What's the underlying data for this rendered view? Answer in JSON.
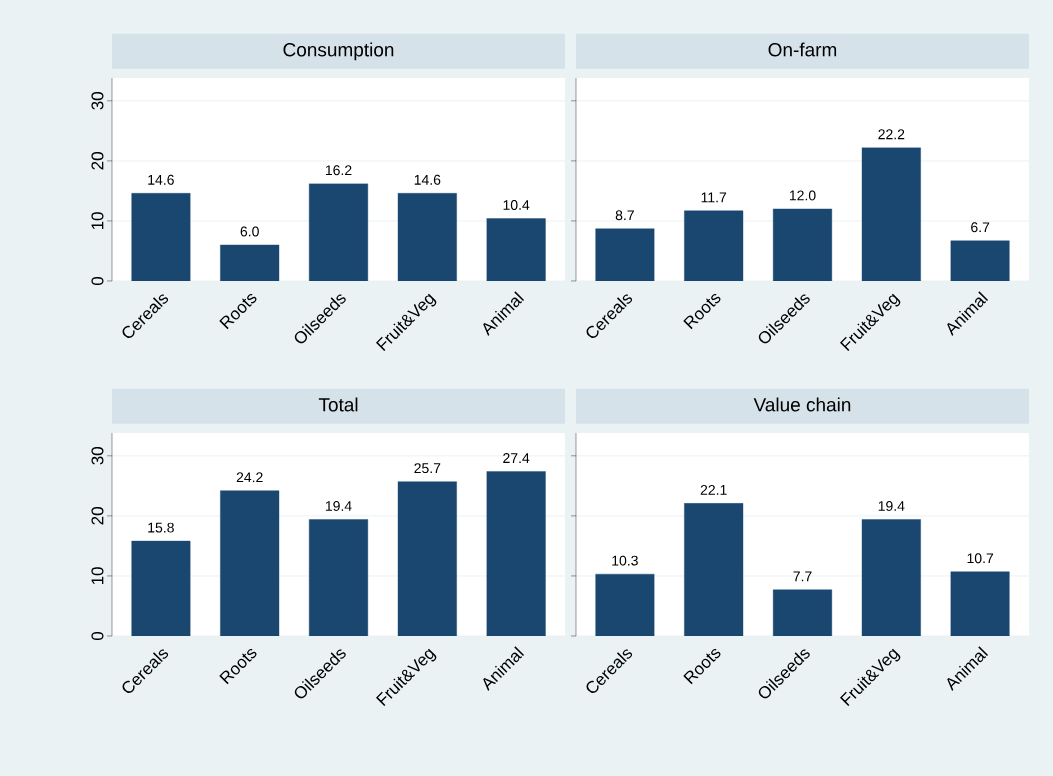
{
  "chart_data": [
    {
      "type": "bar",
      "title": "Consumption",
      "categories": [
        "Cereals",
        "Roots",
        "Oilseeds",
        "Fruit&Veg",
        "Animal"
      ],
      "values": [
        14.6,
        6.0,
        16.2,
        14.6,
        10.4
      ],
      "value_labels": [
        "14.6",
        "6.0",
        "16.2",
        "14.6",
        "10.4"
      ],
      "color": "#1a476f",
      "ylim": [
        0,
        33.8
      ],
      "yticks": [
        0,
        10,
        20,
        30
      ],
      "grid": "y"
    },
    {
      "type": "bar",
      "title": "On-farm",
      "categories": [
        "Cereals",
        "Roots",
        "Oilseeds",
        "Fruit&Veg",
        "Animal"
      ],
      "values": [
        8.7,
        11.7,
        12.0,
        22.2,
        6.7
      ],
      "value_labels": [
        "8.7",
        "11.7",
        "12.0",
        "22.2",
        "6.7"
      ],
      "color": "#1a476f",
      "ylim": [
        0,
        33.8
      ],
      "yticks": [
        0,
        10,
        20,
        30
      ],
      "grid": "y",
      "tick_labels": "x"
    },
    {
      "type": "bar",
      "title": "Total",
      "categories": [
        "Cereals",
        "Roots",
        "Oilseeds",
        "Fruit&Veg",
        "Animal"
      ],
      "values": [
        15.8,
        24.2,
        19.4,
        25.7,
        27.4
      ],
      "value_labels": [
        "15.8",
        "24.2",
        "19.4",
        "25.7",
        "27.4"
      ],
      "color": "#1a476f",
      "ylim": [
        0,
        33.8
      ],
      "yticks": [
        0,
        10,
        20,
        30
      ],
      "grid": "y"
    },
    {
      "type": "bar",
      "title": "Value chain",
      "categories": [
        "Cereals",
        "Roots",
        "Oilseeds",
        "Fruit&Veg",
        "Animal"
      ],
      "values": [
        10.3,
        22.1,
        7.7,
        19.4,
        10.7
      ],
      "value_labels": [
        "10.3",
        "22.1",
        "7.7",
        "19.4",
        "10.7"
      ],
      "color": "#1a476f",
      "ylim": [
        0,
        33.8
      ],
      "yticks": [
        0,
        10,
        20,
        30
      ],
      "grid": "y",
      "tick_labels": "x"
    }
  ]
}
